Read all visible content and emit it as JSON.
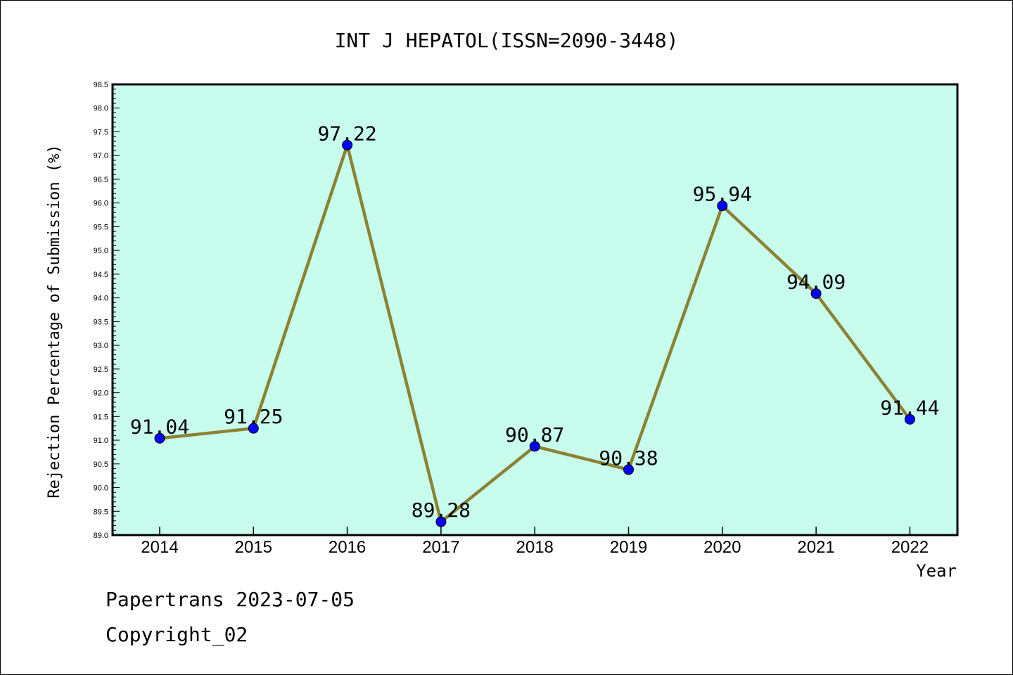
{
  "chart_data": {
    "type": "line",
    "title": "INT J HEPATOL(ISSN=2090-3448)",
    "xlabel": "Year",
    "ylabel": "Rejection Percentage of Submission (%)",
    "categories": [
      "2014",
      "2015",
      "2016",
      "2017",
      "2018",
      "2019",
      "2020",
      "2021",
      "2022"
    ],
    "values": [
      91.04,
      91.25,
      97.22,
      89.28,
      90.87,
      90.38,
      95.94,
      94.09,
      91.44
    ],
    "data_labels": [
      "91.04",
      "91.25",
      "97.22",
      "89.28",
      "90.87",
      "90.38",
      "95.94",
      "94.09",
      "91.44"
    ],
    "ylim": [
      89.0,
      98.5
    ],
    "y_ticks": [
      "89.0",
      "89.5",
      "90.0",
      "90.5",
      "91.0",
      "91.5",
      "92.0",
      "92.5",
      "93.0",
      "93.5",
      "94.0",
      "94.5",
      "95.0",
      "95.5",
      "96.0",
      "96.5",
      "97.0",
      "97.5",
      "98.0",
      "98.5"
    ],
    "grid": false,
    "legend": "none",
    "colors": {
      "plot_background": "#c8fced",
      "line": "#8c8234",
      "marker": "#0000ff"
    }
  },
  "footer": {
    "line1": "Papertrans 2023-07-05",
    "line2": "Copyright_02"
  }
}
